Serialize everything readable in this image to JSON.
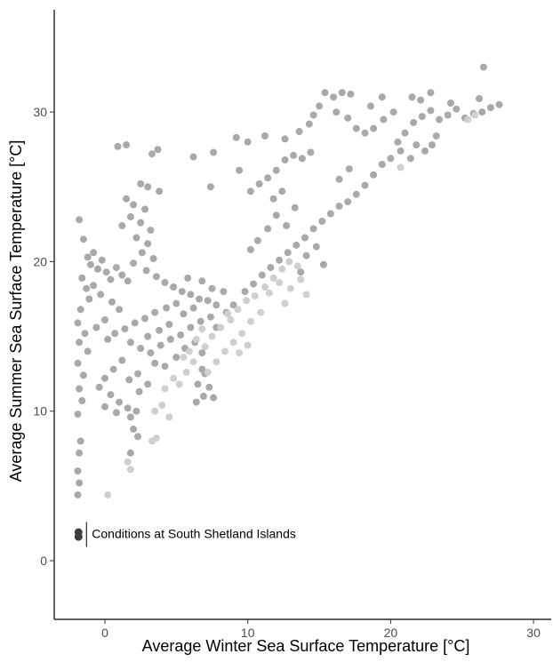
{
  "chart_data": {
    "type": "scatter",
    "title": "",
    "xlabel": "Average Winter Sea Surface Temperature [°C]",
    "ylabel": "Average Summer Sea Surface Temperature [°C]",
    "xlim": [
      -3.6,
      31.5
    ],
    "ylim": [
      -4,
      36.5
    ],
    "x_ticks": [
      0,
      10,
      20,
      30
    ],
    "y_ticks": [
      0,
      10,
      20,
      30
    ],
    "x_tick_labels": [
      "0",
      "10",
      "20",
      "30"
    ],
    "y_tick_labels": [
      "0",
      "10",
      "20",
      "30"
    ],
    "grid": false,
    "legend": "none",
    "colors": {
      "main": "#a9a9a9",
      "light": "#cfcfcf",
      "highlight": "#3d3d3d",
      "axis": "#000000"
    },
    "series": [
      {
        "values": [
          {
            "x": -1.8,
            "y": 22.8
          },
          {
            "x": -1.5,
            "y": 21.5
          },
          {
            "x": -1.2,
            "y": 20.3
          },
          {
            "x": -1.0,
            "y": 19.8
          },
          {
            "x": -0.8,
            "y": 20.6
          },
          {
            "x": -0.5,
            "y": 19.5
          },
          {
            "x": -0.2,
            "y": 20.1
          },
          {
            "x": 0.1,
            "y": 19.3
          },
          {
            "x": 0.4,
            "y": 18.8
          },
          {
            "x": 0.8,
            "y": 19.6
          },
          {
            "x": 1.2,
            "y": 19.1
          },
          {
            "x": 1.6,
            "y": 18.7
          },
          {
            "x": -1.6,
            "y": 18.9
          },
          {
            "x": -1.3,
            "y": 18.2
          },
          {
            "x": -1.1,
            "y": 17.5
          },
          {
            "x": -1.7,
            "y": 16.8
          },
          {
            "x": -1.9,
            "y": 15.9
          },
          {
            "x": -1.4,
            "y": 15.2
          },
          {
            "x": -1.8,
            "y": 14.6
          },
          {
            "x": -1.2,
            "y": 14.0
          },
          {
            "x": -1.9,
            "y": 13.2
          },
          {
            "x": -1.5,
            "y": 12.4
          },
          {
            "x": -1.8,
            "y": 11.5
          },
          {
            "x": -1.6,
            "y": 10.7
          },
          {
            "x": -1.9,
            "y": 9.8
          },
          {
            "x": -1.7,
            "y": 8.0
          },
          {
            "x": -1.8,
            "y": 7.2
          },
          {
            "x": -1.9,
            "y": 6.0
          },
          {
            "x": -1.8,
            "y": 5.2
          },
          {
            "x": -1.9,
            "y": 4.4
          },
          {
            "x": 1.5,
            "y": 27.8
          },
          {
            "x": 0.9,
            "y": 27.7
          },
          {
            "x": 3.7,
            "y": 27.5
          },
          {
            "x": 3.3,
            "y": 27.2
          },
          {
            "x": 2.5,
            "y": 25.2
          },
          {
            "x": 3.0,
            "y": 25.0
          },
          {
            "x": 3.8,
            "y": 24.7
          },
          {
            "x": 1.5,
            "y": 24.2
          },
          {
            "x": 2.0,
            "y": 23.8
          },
          {
            "x": 2.8,
            "y": 23.5
          },
          {
            "x": 1.8,
            "y": 23.0
          },
          {
            "x": 2.5,
            "y": 22.6
          },
          {
            "x": 3.2,
            "y": 22.1
          },
          {
            "x": 1.2,
            "y": 22.4
          },
          {
            "x": 2.2,
            "y": 21.6
          },
          {
            "x": 3.0,
            "y": 21.2
          },
          {
            "x": 2.6,
            "y": 20.6
          },
          {
            "x": 3.4,
            "y": 20.2
          },
          {
            "x": 2.0,
            "y": 19.9
          },
          {
            "x": 2.9,
            "y": 19.4
          },
          {
            "x": 3.6,
            "y": 19.0
          },
          {
            "x": 4.2,
            "y": 18.6
          },
          {
            "x": 4.8,
            "y": 18.3
          },
          {
            "x": 5.4,
            "y": 18.0
          },
          {
            "x": 6.0,
            "y": 17.8
          },
          {
            "x": 6.6,
            "y": 17.5
          },
          {
            "x": 7.2,
            "y": 17.4
          },
          {
            "x": 7.8,
            "y": 17.1
          },
          {
            "x": 5.8,
            "y": 18.9
          },
          {
            "x": 6.8,
            "y": 18.7
          },
          {
            "x": 7.5,
            "y": 18.2
          },
          {
            "x": 8.3,
            "y": 18.0
          },
          {
            "x": 5.0,
            "y": 17.2
          },
          {
            "x": 4.3,
            "y": 16.9
          },
          {
            "x": 3.5,
            "y": 16.6
          },
          {
            "x": 2.8,
            "y": 16.2
          },
          {
            "x": 2.1,
            "y": 15.9
          },
          {
            "x": 1.4,
            "y": 15.5
          },
          {
            "x": 0.7,
            "y": 15.2
          },
          {
            "x": 0.2,
            "y": 14.8
          },
          {
            "x": 1.0,
            "y": 16.8
          },
          {
            "x": 0.5,
            "y": 17.3
          },
          {
            "x": -0.3,
            "y": 17.8
          },
          {
            "x": -0.8,
            "y": 18.4
          },
          {
            "x": 0.0,
            "y": 16.1
          },
          {
            "x": -0.6,
            "y": 15.6
          },
          {
            "x": 1.8,
            "y": 14.6
          },
          {
            "x": 2.5,
            "y": 14.2
          },
          {
            "x": 3.2,
            "y": 13.9
          },
          {
            "x": 3.9,
            "y": 14.4
          },
          {
            "x": 4.6,
            "y": 14.8
          },
          {
            "x": 5.3,
            "y": 15.1
          },
          {
            "x": 6.0,
            "y": 15.6
          },
          {
            "x": 6.7,
            "y": 16.0
          },
          {
            "x": 7.4,
            "y": 16.3
          },
          {
            "x": 1.2,
            "y": 13.4
          },
          {
            "x": 0.6,
            "y": 12.8
          },
          {
            "x": 0.0,
            "y": 12.2
          },
          {
            "x": -0.4,
            "y": 11.6
          },
          {
            "x": 0.4,
            "y": 11.1
          },
          {
            "x": 1.0,
            "y": 10.6
          },
          {
            "x": 1.6,
            "y": 10.2
          },
          {
            "x": 2.2,
            "y": 10.0
          },
          {
            "x": 0.0,
            "y": 10.3
          },
          {
            "x": 0.8,
            "y": 9.9
          },
          {
            "x": 1.8,
            "y": 9.6
          },
          {
            "x": 2.4,
            "y": 11.3
          },
          {
            "x": 3.0,
            "y": 11.8
          },
          {
            "x": 2.3,
            "y": 12.5
          },
          {
            "x": 1.7,
            "y": 12.1
          },
          {
            "x": 2.0,
            "y": 8.8
          },
          {
            "x": 2.3,
            "y": 8.3
          },
          {
            "x": 1.8,
            "y": 7.2
          },
          {
            "x": 3.5,
            "y": 13.2
          },
          {
            "x": 4.2,
            "y": 13.0
          },
          {
            "x": 5.0,
            "y": 13.6
          },
          {
            "x": 5.6,
            "y": 14.2
          },
          {
            "x": 6.3,
            "y": 14.6
          },
          {
            "x": 6.8,
            "y": 13.9
          },
          {
            "x": 7.0,
            "y": 12.5
          },
          {
            "x": 6.5,
            "y": 11.8
          },
          {
            "x": 6.9,
            "y": 11.0
          },
          {
            "x": 7.3,
            "y": 11.6
          },
          {
            "x": 7.6,
            "y": 10.9
          },
          {
            "x": 6.4,
            "y": 10.6
          },
          {
            "x": 6.8,
            "y": 12.8
          },
          {
            "x": 5.5,
            "y": 16.5
          },
          {
            "x": 6.2,
            "y": 16.9
          },
          {
            "x": 4.5,
            "y": 15.8
          },
          {
            "x": 3.8,
            "y": 15.4
          },
          {
            "x": 3.0,
            "y": 15.0
          },
          {
            "x": 7.8,
            "y": 15.6
          },
          {
            "x": 8.5,
            "y": 16.6
          },
          {
            "x": 9.0,
            "y": 17.1
          },
          {
            "x": 6.2,
            "y": 27.0
          },
          {
            "x": 7.6,
            "y": 27.3
          },
          {
            "x": 7.4,
            "y": 25.0
          },
          {
            "x": 9.4,
            "y": 26.1
          },
          {
            "x": 9.2,
            "y": 28.3
          },
          {
            "x": 10.0,
            "y": 28.0
          },
          {
            "x": 10.2,
            "y": 24.7
          },
          {
            "x": 10.8,
            "y": 25.2
          },
          {
            "x": 11.4,
            "y": 25.6
          },
          {
            "x": 12.0,
            "y": 26.1
          },
          {
            "x": 12.6,
            "y": 26.8
          },
          {
            "x": 13.2,
            "y": 27.1
          },
          {
            "x": 13.8,
            "y": 26.9
          },
          {
            "x": 14.4,
            "y": 27.3
          },
          {
            "x": 11.2,
            "y": 28.4
          },
          {
            "x": 12.6,
            "y": 28.2
          },
          {
            "x": 13.6,
            "y": 28.7
          },
          {
            "x": 14.3,
            "y": 29.2
          },
          {
            "x": 15.0,
            "y": 30.4
          },
          {
            "x": 14.6,
            "y": 29.8
          },
          {
            "x": 15.4,
            "y": 31.3
          },
          {
            "x": 16.0,
            "y": 31.0
          },
          {
            "x": 16.6,
            "y": 31.3
          },
          {
            "x": 17.2,
            "y": 31.2
          },
          {
            "x": 16.2,
            "y": 30.0
          },
          {
            "x": 17.0,
            "y": 29.6
          },
          {
            "x": 17.6,
            "y": 28.9
          },
          {
            "x": 18.2,
            "y": 28.6
          },
          {
            "x": 18.8,
            "y": 28.9
          },
          {
            "x": 19.5,
            "y": 29.5
          },
          {
            "x": 20.2,
            "y": 30.0
          },
          {
            "x": 18.6,
            "y": 30.4
          },
          {
            "x": 19.4,
            "y": 31.0
          },
          {
            "x": 20.5,
            "y": 28.0
          },
          {
            "x": 21.0,
            "y": 28.6
          },
          {
            "x": 21.6,
            "y": 29.3
          },
          {
            "x": 22.2,
            "y": 29.7
          },
          {
            "x": 22.8,
            "y": 30.1
          },
          {
            "x": 23.4,
            "y": 29.5
          },
          {
            "x": 24.0,
            "y": 29.8
          },
          {
            "x": 24.6,
            "y": 30.2
          },
          {
            "x": 25.2,
            "y": 29.6
          },
          {
            "x": 25.8,
            "y": 29.9
          },
          {
            "x": 26.4,
            "y": 30.0
          },
          {
            "x": 27.0,
            "y": 30.3
          },
          {
            "x": 27.6,
            "y": 30.5
          },
          {
            "x": 26.5,
            "y": 33.0
          },
          {
            "x": 26.2,
            "y": 30.9
          },
          {
            "x": 24.2,
            "y": 30.6
          },
          {
            "x": 21.5,
            "y": 31.0
          },
          {
            "x": 22.1,
            "y": 30.8
          },
          {
            "x": 22.8,
            "y": 31.3
          },
          {
            "x": 23.2,
            "y": 28.4
          },
          {
            "x": 22.9,
            "y": 27.8
          },
          {
            "x": 22.4,
            "y": 27.4
          },
          {
            "x": 21.8,
            "y": 27.8
          },
          {
            "x": 20.0,
            "y": 26.9
          },
          {
            "x": 19.4,
            "y": 26.5
          },
          {
            "x": 18.8,
            "y": 25.8
          },
          {
            "x": 18.2,
            "y": 25.1
          },
          {
            "x": 17.6,
            "y": 24.5
          },
          {
            "x": 17.0,
            "y": 24.0
          },
          {
            "x": 16.4,
            "y": 23.7
          },
          {
            "x": 15.8,
            "y": 23.2
          },
          {
            "x": 15.2,
            "y": 22.7
          },
          {
            "x": 14.6,
            "y": 22.2
          },
          {
            "x": 14.0,
            "y": 21.6
          },
          {
            "x": 13.4,
            "y": 21.1
          },
          {
            "x": 12.8,
            "y": 20.6
          },
          {
            "x": 12.2,
            "y": 20.1
          },
          {
            "x": 11.6,
            "y": 19.6
          },
          {
            "x": 11.0,
            "y": 19.1
          },
          {
            "x": 10.4,
            "y": 18.5
          },
          {
            "x": 9.8,
            "y": 18.0
          },
          {
            "x": 12.0,
            "y": 23.1
          },
          {
            "x": 12.7,
            "y": 22.4
          },
          {
            "x": 13.3,
            "y": 23.6
          },
          {
            "x": 11.4,
            "y": 22.2
          },
          {
            "x": 10.7,
            "y": 21.4
          },
          {
            "x": 10.2,
            "y": 20.8
          },
          {
            "x": 14.1,
            "y": 20.4
          },
          {
            "x": 14.8,
            "y": 21.0
          },
          {
            "x": 13.7,
            "y": 19.3
          },
          {
            "x": 15.3,
            "y": 19.8
          },
          {
            "x": 11.8,
            "y": 24.2
          },
          {
            "x": 12.4,
            "y": 24.7
          },
          {
            "x": 16.4,
            "y": 25.5
          },
          {
            "x": 17.1,
            "y": 26.2
          },
          {
            "x": 21.4,
            "y": 26.9
          },
          {
            "x": 20.7,
            "y": 27.4
          }
        ]
      },
      {
        "values": [
          {
            "x": 0.2,
            "y": 4.4
          },
          {
            "x": 1.6,
            "y": 6.6
          },
          {
            "x": 1.8,
            "y": 6.1
          },
          {
            "x": 3.3,
            "y": 8.0
          },
          {
            "x": 3.6,
            "y": 8.2
          },
          {
            "x": 4.5,
            "y": 9.6
          },
          {
            "x": 4.0,
            "y": 10.4
          },
          {
            "x": 3.5,
            "y": 10.0
          },
          {
            "x": 5.2,
            "y": 11.8
          },
          {
            "x": 5.7,
            "y": 12.6
          },
          {
            "x": 6.2,
            "y": 13.3
          },
          {
            "x": 5.9,
            "y": 14.0
          },
          {
            "x": 6.4,
            "y": 14.8
          },
          {
            "x": 7.0,
            "y": 14.3
          },
          {
            "x": 7.5,
            "y": 15.0
          },
          {
            "x": 8.1,
            "y": 15.6
          },
          {
            "x": 8.8,
            "y": 16.1
          },
          {
            "x": 9.3,
            "y": 16.8
          },
          {
            "x": 9.9,
            "y": 17.4
          },
          {
            "x": 10.5,
            "y": 17.7
          },
          {
            "x": 11.2,
            "y": 18.3
          },
          {
            "x": 11.8,
            "y": 18.9
          },
          {
            "x": 12.4,
            "y": 19.5
          },
          {
            "x": 12.9,
            "y": 20.0
          },
          {
            "x": 13.5,
            "y": 19.7
          },
          {
            "x": 12.2,
            "y": 18.6
          },
          {
            "x": 11.5,
            "y": 17.9
          },
          {
            "x": 10.9,
            "y": 16.6
          },
          {
            "x": 10.2,
            "y": 16.0
          },
          {
            "x": 9.6,
            "y": 15.2
          },
          {
            "x": 9.0,
            "y": 14.6
          },
          {
            "x": 8.4,
            "y": 14.0
          },
          {
            "x": 7.8,
            "y": 13.3
          },
          {
            "x": 7.2,
            "y": 12.6
          },
          {
            "x": 5.5,
            "y": 13.6
          },
          {
            "x": 4.8,
            "y": 12.2
          },
          {
            "x": 4.2,
            "y": 11.5
          },
          {
            "x": 6.8,
            "y": 15.5
          },
          {
            "x": 8.6,
            "y": 16.5
          },
          {
            "x": 9.4,
            "y": 13.9
          },
          {
            "x": 10.0,
            "y": 14.4
          },
          {
            "x": 13.0,
            "y": 18.2
          },
          {
            "x": 13.7,
            "y": 18.8
          },
          {
            "x": 14.1,
            "y": 17.8
          },
          {
            "x": 12.6,
            "y": 17.2
          },
          {
            "x": 20.7,
            "y": 26.3
          },
          {
            "x": 25.4,
            "y": 29.5
          },
          {
            "x": 25.9,
            "y": 29.8
          }
        ]
      }
    ],
    "annotation": {
      "text": "Conditions at South Shetland Islands",
      "points": [
        {
          "x": -1.85,
          "y": 1.9
        },
        {
          "x": -1.85,
          "y": 1.6
        }
      ]
    }
  }
}
